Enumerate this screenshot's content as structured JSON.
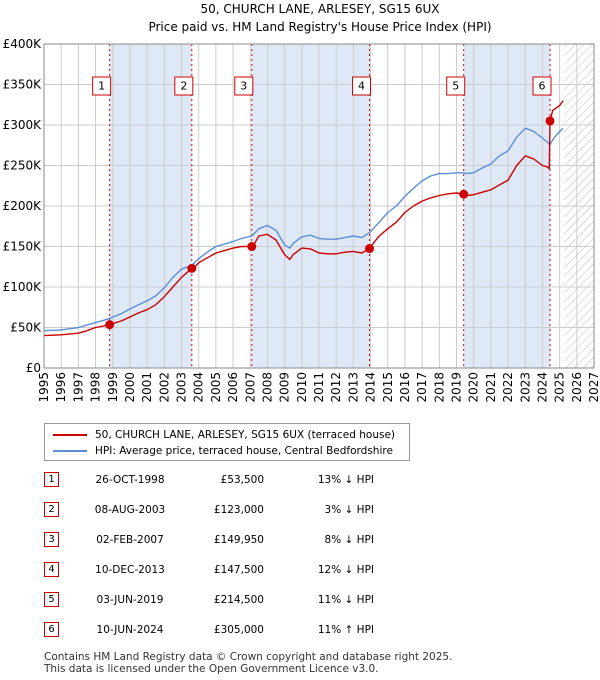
{
  "chart_data": {
    "type": "line",
    "title": "50, CHURCH LANE, ARLESEY, SG15 6UX",
    "subtitle": "Price paid vs. HM Land Registry's House Price Index (HPI)",
    "xlabel": "",
    "ylabel": "",
    "xlim": [
      1995,
      2027
    ],
    "ylim": [
      0,
      400000
    ],
    "x_ticks": [
      "1995",
      "1996",
      "1997",
      "1998",
      "1999",
      "2000",
      "2001",
      "2002",
      "2003",
      "2004",
      "2005",
      "2006",
      "2007",
      "2008",
      "2009",
      "2010",
      "2011",
      "2012",
      "2013",
      "2014",
      "2015",
      "2016",
      "2017",
      "2018",
      "2019",
      "2020",
      "2021",
      "2022",
      "2023",
      "2024",
      "2025",
      "2026",
      "2027"
    ],
    "y_ticks": [
      {
        "value": 0,
        "label": "£0"
      },
      {
        "value": 50000,
        "label": "£50K"
      },
      {
        "value": 100000,
        "label": "£100K"
      },
      {
        "value": 150000,
        "label": "£150K"
      },
      {
        "value": 200000,
        "label": "£200K"
      },
      {
        "value": 250000,
        "label": "£250K"
      },
      {
        "value": 300000,
        "label": "£300K"
      },
      {
        "value": 350000,
        "label": "£350K"
      },
      {
        "value": 400000,
        "label": "£400K"
      }
    ],
    "grid": true,
    "shaded_spans": [
      [
        1998.82,
        2003.6
      ],
      [
        2007.09,
        2013.94
      ],
      [
        2019.42,
        2024.44
      ]
    ],
    "future_hatch_from": 2025.25,
    "series": [
      {
        "name": "50, CHURCH LANE, ARLESEY, SG15 6UX (terraced house)",
        "color": "#cc0000",
        "x": [
          1995.0,
          1996.0,
          1997.0,
          1997.5,
          1998.0,
          1998.82,
          1999.0,
          1999.5,
          2000.0,
          2000.5,
          2001.0,
          2001.5,
          2002.0,
          2002.5,
          2003.0,
          2003.6,
          2003.8,
          2004.0,
          2004.5,
          2005.0,
          2005.5,
          2006.0,
          2006.5,
          2007.09,
          2007.2,
          2007.5,
          2008.0,
          2008.5,
          2009.0,
          2009.3,
          2009.5,
          2010.0,
          2010.5,
          2011.0,
          2011.5,
          2012.0,
          2012.5,
          2013.0,
          2013.5,
          2013.94,
          2014.2,
          2014.5,
          2015.0,
          2015.5,
          2016.0,
          2016.5,
          2017.0,
          2017.5,
          2018.0,
          2018.5,
          2019.0,
          2019.42,
          2019.6,
          2020.0,
          2020.5,
          2021.0,
          2021.5,
          2022.0,
          2022.5,
          2023.0,
          2023.5,
          2024.0,
          2024.3,
          2024.4,
          2024.44,
          2024.6,
          2025.0,
          2025.2
        ],
        "y": [
          40000,
          41000,
          43000,
          46000,
          50000,
          53500,
          55000,
          58000,
          63000,
          68000,
          72000,
          78000,
          88000,
          100000,
          112000,
          123000,
          125000,
          130000,
          136000,
          142000,
          145000,
          148000,
          150000,
          149950,
          152000,
          163000,
          165000,
          158000,
          140000,
          134000,
          140000,
          148000,
          147000,
          142000,
          141000,
          141000,
          143000,
          144000,
          142000,
          147500,
          155000,
          163000,
          172000,
          180000,
          192000,
          200000,
          206000,
          210000,
          213000,
          215000,
          216000,
          214500,
          213000,
          214000,
          217000,
          220000,
          226000,
          232000,
          250000,
          262000,
          258000,
          250000,
          248000,
          246000,
          305000,
          318000,
          324000,
          330000
        ]
      },
      {
        "name": "HPI: Average price, terraced house, Central Bedfordshire",
        "color": "#5b8ed6",
        "x": [
          1995.0,
          1996.0,
          1997.0,
          1997.5,
          1998.0,
          1998.82,
          1999.0,
          1999.5,
          2000.0,
          2000.5,
          2001.0,
          2001.5,
          2002.0,
          2002.5,
          2003.0,
          2003.6,
          2004.0,
          2004.5,
          2005.0,
          2005.5,
          2006.0,
          2006.5,
          2007.09,
          2007.5,
          2008.0,
          2008.5,
          2009.0,
          2009.3,
          2009.5,
          2010.0,
          2010.5,
          2011.0,
          2011.5,
          2012.0,
          2012.5,
          2013.0,
          2013.5,
          2013.94,
          2014.5,
          2015.0,
          2015.5,
          2016.0,
          2016.5,
          2017.0,
          2017.5,
          2018.0,
          2018.5,
          2019.0,
          2019.42,
          2019.6,
          2020.0,
          2020.5,
          2021.0,
          2021.5,
          2022.0,
          2022.5,
          2023.0,
          2023.5,
          2024.0,
          2024.44,
          2024.7,
          2025.0,
          2025.2
        ],
        "y": [
          46000,
          47000,
          50000,
          53000,
          56000,
          61000,
          63000,
          67000,
          73000,
          78000,
          83000,
          89000,
          99000,
          112000,
          122000,
          127000,
          135000,
          143000,
          150000,
          153000,
          156000,
          160000,
          163000,
          172000,
          176000,
          170000,
          152000,
          148000,
          154000,
          162000,
          164000,
          160000,
          159000,
          159000,
          161000,
          163000,
          161000,
          167000,
          180000,
          192000,
          200000,
          212000,
          222000,
          231000,
          237000,
          240000,
          240000,
          241000,
          241000,
          240000,
          241000,
          247000,
          252000,
          262000,
          268000,
          285000,
          296000,
          292000,
          284000,
          276000,
          285000,
          292000,
          296000
        ]
      }
    ],
    "markers": [
      {
        "label": "1",
        "x": 1998.82,
        "y": 53500
      },
      {
        "label": "2",
        "x": 2003.6,
        "y": 123000
      },
      {
        "label": "3",
        "x": 2007.09,
        "y": 149950
      },
      {
        "label": "4",
        "x": 2013.94,
        "y": 147500
      },
      {
        "label": "5",
        "x": 2019.42,
        "y": 214500
      },
      {
        "label": "6",
        "x": 2024.44,
        "y": 305000
      }
    ]
  },
  "legend": {
    "entries": [
      {
        "label": "50, CHURCH LANE, ARLESEY, SG15 6UX (terraced house)",
        "color": "#cc0000"
      },
      {
        "label": "HPI: Average price, terraced house, Central Bedfordshire",
        "color": "#5b8ed6"
      }
    ]
  },
  "transactions": [
    {
      "num": "1",
      "date": "26-OCT-1998",
      "price": "£53,500",
      "hpi": "13% ↓ HPI"
    },
    {
      "num": "2",
      "date": "08-AUG-2003",
      "price": "£123,000",
      "hpi": "3% ↓ HPI"
    },
    {
      "num": "3",
      "date": "02-FEB-2007",
      "price": "£149,950",
      "hpi": "8% ↓ HPI"
    },
    {
      "num": "4",
      "date": "10-DEC-2013",
      "price": "£147,500",
      "hpi": "12% ↓ HPI"
    },
    {
      "num": "5",
      "date": "03-JUN-2019",
      "price": "£214,500",
      "hpi": "11% ↓ HPI"
    },
    {
      "num": "6",
      "date": "10-JUN-2024",
      "price": "£305,000",
      "hpi": "11% ↑ HPI"
    }
  ],
  "footer": {
    "line1": "Contains HM Land Registry data © Crown copyright and database right 2025.",
    "line2": "This data is licensed under the Open Government Licence v3.0."
  }
}
